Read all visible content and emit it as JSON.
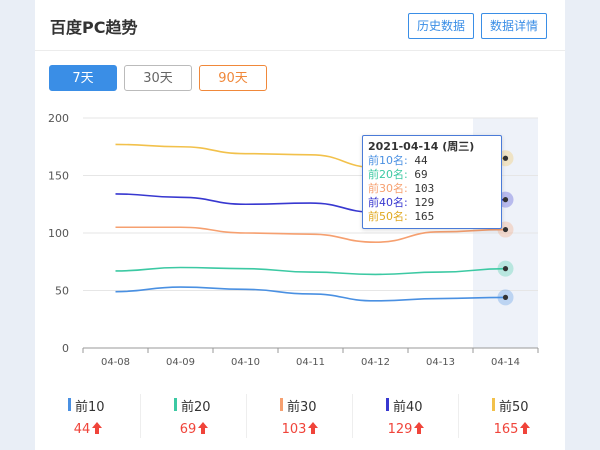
{
  "header": {
    "title": "百度PC趋势",
    "history_label": "历史数据",
    "detail_label": "数据详情"
  },
  "range": {
    "d7": "7天",
    "d30": "30天",
    "d90": "90天"
  },
  "colors": {
    "top10": "#4a90e2",
    "top20": "#3cc9a3",
    "top30": "#f6a070",
    "top40": "#3838d0",
    "top50": "#f2c14b",
    "accent": "#3a8ee6",
    "up": "#f0443a"
  },
  "chart_data": {
    "type": "line",
    "categories": [
      "04-08",
      "04-09",
      "04-10",
      "04-11",
      "04-12",
      "04-13",
      "04-14"
    ],
    "y_ticks": [
      "200",
      "150",
      "100",
      "50",
      "0"
    ],
    "ylim": [
      0,
      200
    ],
    "series": [
      {
        "name": "前10名",
        "values": [
          49,
          53,
          51,
          47,
          41,
          43,
          44
        ]
      },
      {
        "name": "前20名",
        "values": [
          67,
          70,
          69,
          66,
          64,
          66,
          69
        ]
      },
      {
        "name": "前30名",
        "values": [
          105,
          105,
          100,
          99,
          92,
          101,
          103
        ]
      },
      {
        "name": "前40名",
        "values": [
          134,
          131,
          125,
          126,
          118,
          125,
          129
        ]
      },
      {
        "name": "前50名",
        "values": [
          177,
          175,
          169,
          168,
          157,
          162,
          165
        ]
      }
    ],
    "highlight_index": 6,
    "tooltip": {
      "date": "2021-04-14 (周三)",
      "rows": [
        {
          "label": "前10名:",
          "value": "44"
        },
        {
          "label": "前20名:",
          "value": "69"
        },
        {
          "label": "前30名:",
          "value": "103"
        },
        {
          "label": "前40名:",
          "value": "129"
        },
        {
          "label": "前50名:",
          "value": "165"
        }
      ]
    }
  },
  "legend": [
    {
      "name": "前10",
      "value": "44"
    },
    {
      "name": "前20",
      "value": "69"
    },
    {
      "name": "前30",
      "value": "103"
    },
    {
      "name": "前40",
      "value": "129"
    },
    {
      "name": "前50",
      "value": "165"
    }
  ]
}
